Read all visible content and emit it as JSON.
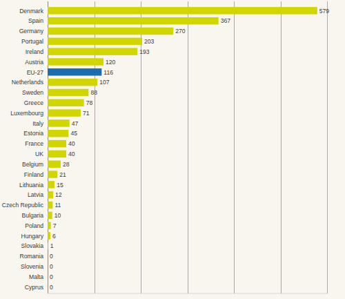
{
  "chart_data": {
    "type": "bar",
    "orientation": "horizontal",
    "categories": [
      "Denmark",
      "Spain",
      "Germany",
      "Portugal",
      "Ireland",
      "Austria",
      "EU-27",
      "Netherlands",
      "Sweden",
      "Greece",
      "Luxembourg",
      "Italy",
      "Estonia",
      "France",
      "UK",
      "Belgium",
      "Finland",
      "Lithuania",
      "Latvia",
      "Czech Republic",
      "Bulgaria",
      "Poland",
      "Hungary",
      "Slovakia",
      "Romania",
      "Slovenia",
      "Malta",
      "Cyprus"
    ],
    "values": [
      579,
      367,
      270,
      203,
      193,
      120,
      116,
      107,
      88,
      78,
      71,
      47,
      45,
      40,
      40,
      28,
      21,
      15,
      12,
      11,
      10,
      7,
      6,
      1,
      0,
      0,
      0,
      0
    ],
    "colors": [
      "#d2d600",
      "#d2d600",
      "#d2d600",
      "#d2d600",
      "#d2d600",
      "#d2d600",
      "#1c6db0",
      "#d2d600",
      "#d2d600",
      "#d2d600",
      "#d2d600",
      "#d2d600",
      "#d2d600",
      "#d2d600",
      "#d2d600",
      "#d2d600",
      "#d2d600",
      "#d2d600",
      "#d2d600",
      "#d2d600",
      "#d2d600",
      "#d2d600",
      "#d2d600",
      "#d2d600",
      "#d2d600",
      "#d2d600",
      "#d2d600",
      "#d2d600"
    ],
    "xlim": [
      0,
      600
    ],
    "xticks": [
      0,
      100,
      200,
      300,
      400,
      500,
      600
    ],
    "grid": true,
    "data_labels": true,
    "tick_labels": false
  }
}
